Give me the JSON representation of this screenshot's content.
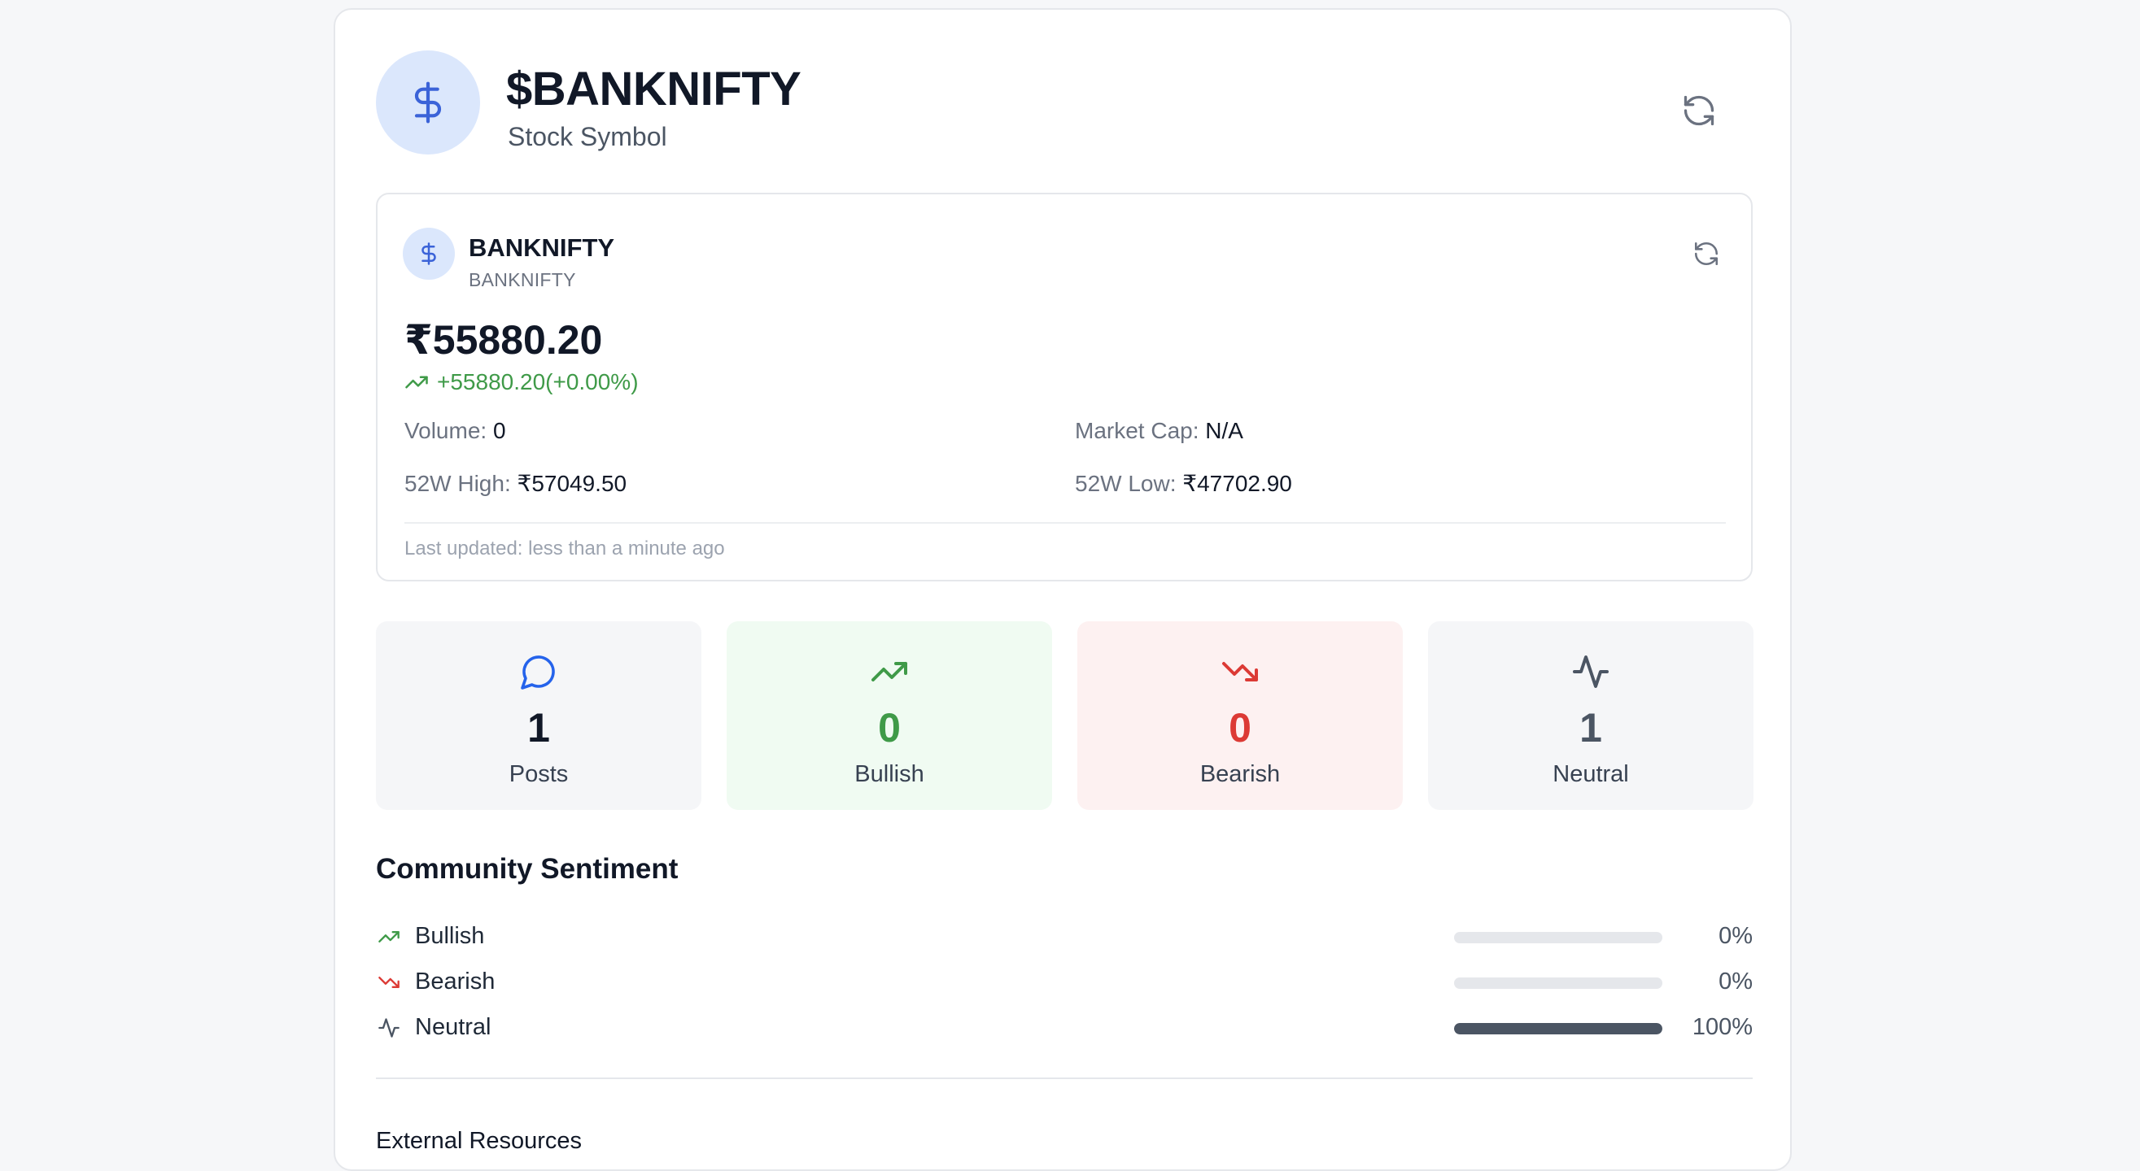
{
  "header": {
    "title": "$BANKNIFTY",
    "subtitle": "Stock Symbol",
    "avatar_icon": "dollar-icon",
    "refresh_icon": "refresh-icon"
  },
  "quote": {
    "name": "BANKNIFTY",
    "symbol": "BANKNIFTY",
    "price": "₹55880.20",
    "change": "+55880.20(+0.00%)",
    "volume_label": "Volume:",
    "volume_value": "0",
    "market_cap_label": "Market Cap:",
    "market_cap_value": "N/A",
    "high_label": "52W High:",
    "high_value": "₹57049.50",
    "low_label": "52W Low:",
    "low_value": "₹47702.90",
    "last_updated": "Last updated: less than a minute ago"
  },
  "stats": [
    {
      "value": "1",
      "label": "Posts",
      "icon": "message-circle-icon",
      "color": "#2563eb",
      "num_color": "#111827",
      "bg": "#f5f6f8"
    },
    {
      "value": "0",
      "label": "Bullish",
      "icon": "trending-up-icon",
      "color": "#3f9a48",
      "num_color": "#3f9a48",
      "bg": "#f0fbf2"
    },
    {
      "value": "0",
      "label": "Bearish",
      "icon": "trending-down-icon",
      "color": "#dc3a35",
      "num_color": "#dc3a35",
      "bg": "#fdf1f1"
    },
    {
      "value": "1",
      "label": "Neutral",
      "icon": "activity-icon",
      "color": "#4b5563",
      "num_color": "#4b5563",
      "bg": "#f5f6f8"
    }
  ],
  "sentiment": {
    "title": "Community Sentiment",
    "rows": [
      {
        "label": "Bullish",
        "percent": "0%",
        "fraction": 0,
        "icon": "trending-up-icon",
        "color": "#3f9a48"
      },
      {
        "label": "Bearish",
        "percent": "0%",
        "fraction": 0,
        "icon": "trending-down-icon",
        "color": "#dc3a35"
      },
      {
        "label": "Neutral",
        "percent": "100%",
        "fraction": 1,
        "icon": "activity-icon",
        "color": "#4b5563"
      }
    ]
  },
  "external": {
    "title": "External Resources"
  }
}
